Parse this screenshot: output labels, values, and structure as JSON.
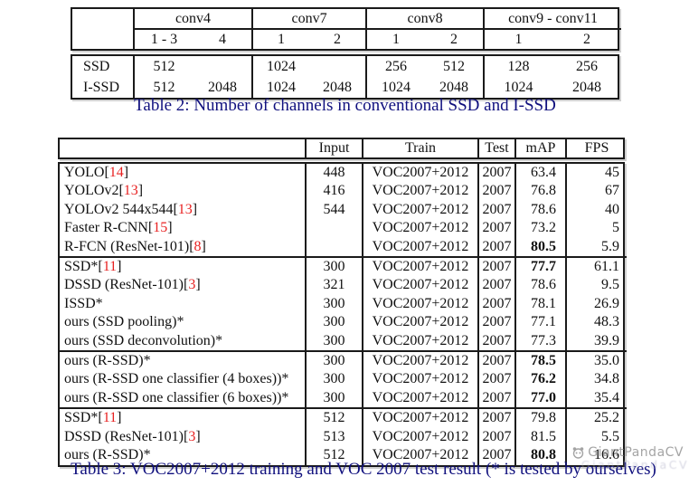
{
  "colors": {
    "caption": "#10107e",
    "citation": "#e82222",
    "border": "#1a1a1a",
    "watermark": "#9b9b9b"
  },
  "table2": {
    "caption": "Table 2: Number of channels in conventional SSD and I-SSD",
    "column_groups": [
      "conv4",
      "conv7",
      "conv8",
      "conv9 - conv11"
    ],
    "sub_headers": [
      "1 - 3",
      "4",
      "1",
      "2",
      "1",
      "2",
      "1",
      "2"
    ],
    "rows": [
      {
        "label": "SSD",
        "values": [
          "512",
          "",
          "1024",
          "",
          "256",
          "512",
          "128",
          "256"
        ]
      },
      {
        "label": "I-SSD",
        "values": [
          "512",
          "2048",
          "1024",
          "2048",
          "1024",
          "2048",
          "1024",
          "2048"
        ]
      }
    ]
  },
  "table3": {
    "caption": "Table 3: VOC2007+2012 training and VOC 2007 test result (* is tested by ourselves)",
    "headers": {
      "method": "",
      "input": "Input",
      "train": "Train",
      "test": "Test",
      "map": "mAP",
      "fps": "FPS"
    },
    "rows": [
      {
        "method": "YOLO",
        "cite": "14",
        "input": "448",
        "train": "VOC2007+2012",
        "test": "2007",
        "map": "63.4",
        "map_bold": false,
        "fps": "45",
        "section": 0
      },
      {
        "method": "YOLOv2",
        "cite": "13",
        "input": "416",
        "train": "VOC2007+2012",
        "test": "2007",
        "map": "76.8",
        "map_bold": false,
        "fps": "67",
        "section": 0
      },
      {
        "method": "YOLOv2 544x544",
        "cite": "13",
        "input": "544",
        "train": "VOC2007+2012",
        "test": "2007",
        "map": "78.6",
        "map_bold": false,
        "fps": "40",
        "section": 0
      },
      {
        "method": "Faster R-CNN",
        "cite": "15",
        "input": "",
        "train": "VOC2007+2012",
        "test": "2007",
        "map": "73.2",
        "map_bold": false,
        "fps": "5",
        "section": 0
      },
      {
        "method": "R-FCN (ResNet-101)",
        "cite": "8",
        "input": "",
        "train": "VOC2007+2012",
        "test": "2007",
        "map": "80.5",
        "map_bold": true,
        "fps": "5.9",
        "section": 0
      },
      {
        "method": "SSD*",
        "cite": "11",
        "input": "300",
        "train": "VOC2007+2012",
        "test": "2007",
        "map": "77.7",
        "map_bold": true,
        "fps": "61.1",
        "section": 1
      },
      {
        "method": "DSSD (ResNet-101)",
        "cite": "3",
        "input": "321",
        "train": "VOC2007+2012",
        "test": "2007",
        "map": "78.6",
        "map_bold": false,
        "fps": "9.5",
        "section": 1
      },
      {
        "method": "ISSD*",
        "cite": "",
        "input": "300",
        "train": "VOC2007+2012",
        "test": "2007",
        "map": "78.1",
        "map_bold": false,
        "fps": "26.9",
        "section": 1
      },
      {
        "method": "ours (SSD pooling)*",
        "cite": "",
        "input": "300",
        "train": "VOC2007+2012",
        "test": "2007",
        "map": "77.1",
        "map_bold": false,
        "fps": "48.3",
        "section": 1
      },
      {
        "method": "ours (SSD deconvolution)*",
        "cite": "",
        "input": "300",
        "train": "VOC2007+2012",
        "test": "2007",
        "map": "77.3",
        "map_bold": false,
        "fps": "39.9",
        "section": 1
      },
      {
        "method": "ours (R-SSD)*",
        "cite": "",
        "input": "300",
        "train": "VOC2007+2012",
        "test": "2007",
        "map": "78.5",
        "map_bold": true,
        "fps": "35.0",
        "section": 2
      },
      {
        "method": "ours (R-SSD one classifier (4 boxes))*",
        "cite": "",
        "input": "300",
        "train": "VOC2007+2012",
        "test": "2007",
        "map": "76.2",
        "map_bold": true,
        "fps": "34.8",
        "section": 2
      },
      {
        "method": "ours (R-SSD one classifier (6 boxes))*",
        "cite": "",
        "input": "300",
        "train": "VOC2007+2012",
        "test": "2007",
        "map": "77.0",
        "map_bold": true,
        "fps": "35.4",
        "section": 2
      },
      {
        "method": "SSD*",
        "cite": "11",
        "input": "512",
        "train": "VOC2007+2012",
        "test": "2007",
        "map": "79.8",
        "map_bold": false,
        "fps": "25.2",
        "section": 3
      },
      {
        "method": "DSSD (ResNet-101)",
        "cite": "3",
        "input": "513",
        "train": "VOC2007+2012",
        "test": "2007",
        "map": "81.5",
        "map_bold": false,
        "fps": "5.5",
        "section": 3
      },
      {
        "method": "ours (R-SSD)*",
        "cite": "",
        "input": "512",
        "train": "VOC2007+2012",
        "test": "2007",
        "map": "80.8",
        "map_bold": true,
        "fps": "16.6",
        "section": 3
      }
    ]
  },
  "watermark": {
    "text": "GiantPandaCV",
    "icon": "panda-icon",
    "shadow_text": "GiantPandaCV"
  }
}
